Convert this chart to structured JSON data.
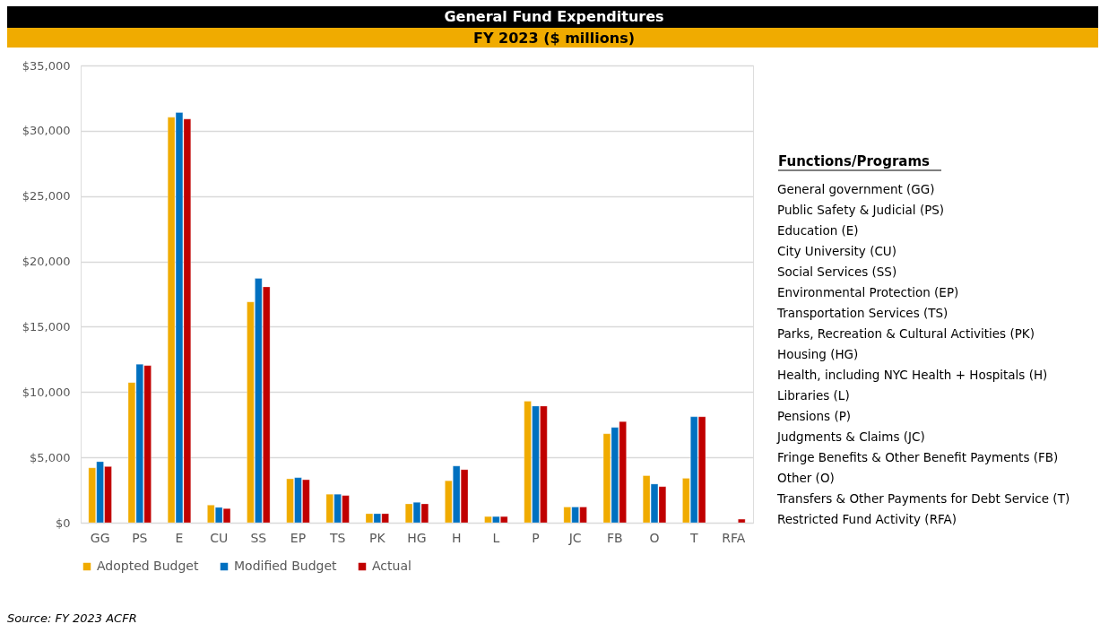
{
  "chart_data": {
    "type": "bar",
    "title": "General Fund Expenditures",
    "subtitle": "FY 2023 ($ millions)",
    "categories": [
      "GG",
      "PS",
      "E",
      "CU",
      "SS",
      "EP",
      "TS",
      "PK",
      "HG",
      "H",
      "L",
      "P",
      "JC",
      "FB",
      "O",
      "T",
      "RFA"
    ],
    "series": [
      {
        "name": "Adopted Budget",
        "color": "#f0ab00",
        "values": [
          4200,
          10730,
          31030,
          1350,
          16900,
          3360,
          2180,
          690,
          1440,
          3210,
          470,
          9300,
          1200,
          6810,
          3600,
          3400,
          null
        ]
      },
      {
        "name": "Modified Budget",
        "color": "#0070c0",
        "values": [
          4670,
          12130,
          31400,
          1170,
          18700,
          3450,
          2180,
          690,
          1560,
          4340,
          470,
          8930,
          1200,
          7290,
          2960,
          8110,
          null
        ]
      },
      {
        "name": "Actual",
        "color": "#c00000",
        "values": [
          4300,
          12030,
          30900,
          1080,
          18050,
          3290,
          2080,
          690,
          1440,
          4060,
          470,
          8930,
          1200,
          7740,
          2760,
          8110,
          270
        ]
      }
    ],
    "ylim": [
      0,
      35000
    ],
    "yticks": [
      {
        "value": 0,
        "label": "$0"
      },
      {
        "value": 5000,
        "label": "$5,000"
      },
      {
        "value": 10000,
        "label": "$10,000"
      },
      {
        "value": 15000,
        "label": "$15,000"
      },
      {
        "value": 20000,
        "label": "$20,000"
      },
      {
        "value": 25000,
        "label": "$25,000"
      },
      {
        "value": 30000,
        "label": "$30,000"
      },
      {
        "value": 35000,
        "label": "$35,000"
      }
    ],
    "grid": "y",
    "legend": "bottom",
    "annotations": [
      "Functions/Programs",
      "General government (GG)",
      "Public Safety & Judicial (PS)",
      "Education (E)",
      "City University (CU)",
      "Social Services (SS)",
      "Environmental Protection (EP)",
      "Transportation Services (TS)",
      "Parks, Recreation & Cultural Activities (PK)",
      "Housing (HG)",
      "Health, including NYC Health + Hospitals (H)",
      "Libraries (L)",
      "Pensions (P)",
      "Judgments & Claims (JC)",
      "Fringe Benefits & Other Benefit Payments (FB)",
      "Other (O)",
      "Transfers & Other Payments for Debt Service (T)",
      "Restricted Fund Activity (RFA)",
      "Source: FY 2023 ACFR"
    ]
  }
}
